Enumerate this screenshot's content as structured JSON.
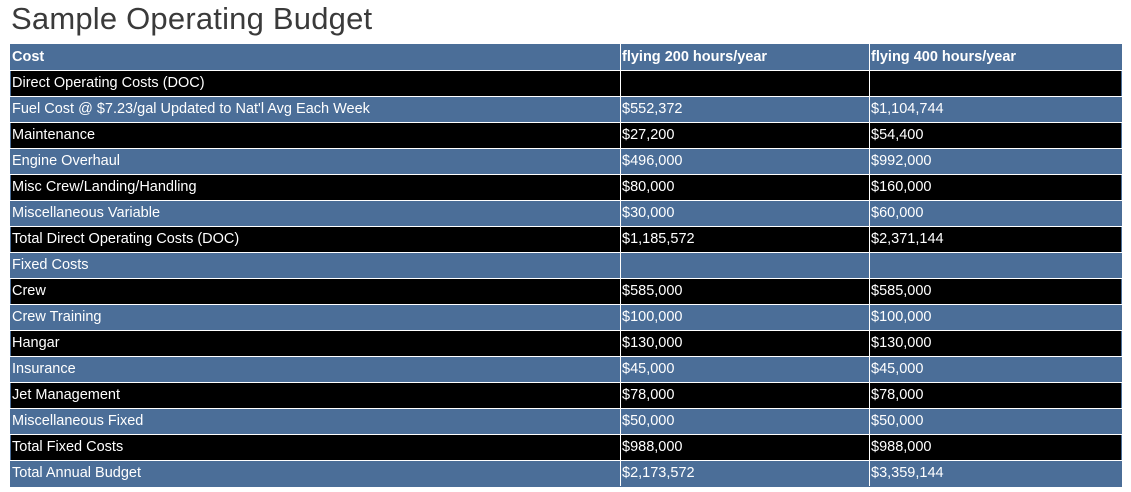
{
  "page": {
    "title": "Sample Operating Budget"
  },
  "table": {
    "headers": [
      "Cost",
      "flying 200 hours/year",
      "flying 400 hours/year"
    ],
    "rows": [
      [
        "Direct Operating Costs (DOC)",
        "",
        ""
      ],
      [
        "Fuel Cost @ $7.23/gal Updated to Nat'l Avg Each Week",
        "$552,372",
        "$1,104,744"
      ],
      [
        "Maintenance",
        "$27,200",
        "$54,400"
      ],
      [
        "Engine Overhaul",
        "$496,000",
        "$992,000"
      ],
      [
        "Misc Crew/Landing/Handling",
        "$80,000",
        "$160,000"
      ],
      [
        "Miscellaneous Variable",
        "$30,000",
        "$60,000"
      ],
      [
        "Total Direct Operating Costs (DOC)",
        "$1,185,572",
        "$2,371,144"
      ],
      [
        "Fixed Costs",
        "",
        ""
      ],
      [
        "Crew",
        "$585,000",
        "$585,000"
      ],
      [
        "Crew Training",
        "$100,000",
        "$100,000"
      ],
      [
        "Hangar",
        "$130,000",
        "$130,000"
      ],
      [
        "Insurance",
        "$45,000",
        "$45,000"
      ],
      [
        "Jet Management",
        "$78,000",
        "$78,000"
      ],
      [
        "Miscellaneous Fixed",
        "$50,000",
        "$50,000"
      ],
      [
        "Total Fixed Costs",
        "$988,000",
        "$988,000"
      ],
      [
        "Total Annual Budget",
        "$2,173,572",
        "$3,359,144"
      ]
    ]
  },
  "colors": {
    "header_bg": "#4b6e98",
    "row_blue": "#4b6e98",
    "row_black": "#000000",
    "text": "#ffffff",
    "title": "#3a3a3a"
  }
}
